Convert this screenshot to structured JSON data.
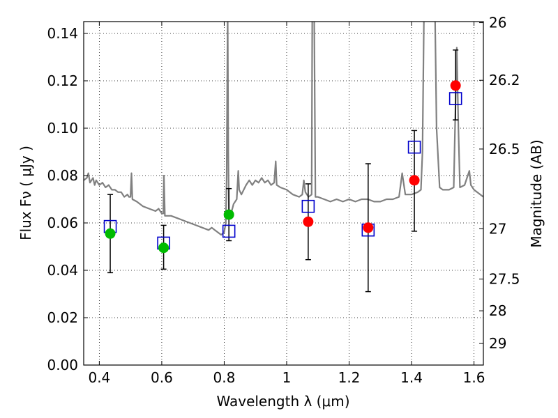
{
  "chart_data": {
    "type": "scatter",
    "xlabel": "Wavelength  λ (μm)",
    "ylabel": "Flux  Fν  ( μJy )",
    "ylabel_right": "Magnitude (AB)",
    "xlim": [
      0.35,
      1.63
    ],
    "ylim": [
      0.0,
      0.145
    ],
    "x_ticks": [
      0.4,
      0.6,
      0.8,
      1.0,
      1.2,
      1.4,
      1.6
    ],
    "x_tick_labels": [
      "0.4",
      "0.6",
      "0.8",
      "1",
      "1.2",
      "1.4",
      "1.6"
    ],
    "y_ticks": [
      0.0,
      0.02,
      0.04,
      0.06,
      0.08,
      0.1,
      0.12,
      0.14
    ],
    "y_tick_labels": [
      "0.00",
      "0.02",
      "0.04",
      "0.06",
      "0.08",
      "0.10",
      "0.12",
      "0.14"
    ],
    "right_ticks": [
      {
        "mag": 26,
        "label": "26"
      },
      {
        "mag": 26.2,
        "label": "26.2"
      },
      {
        "mag": 26.5,
        "label": "26.5"
      },
      {
        "mag": 27,
        "label": "27"
      },
      {
        "mag": 27.5,
        "label": "27.5"
      },
      {
        "mag": 28,
        "label": "28"
      },
      {
        "mag": 29,
        "label": "29"
      }
    ],
    "grid": "dotted",
    "model_spectrum": {
      "color": "#808080",
      "points": [
        [
          0.35,
          0.078
        ],
        [
          0.36,
          0.079
        ],
        [
          0.365,
          0.081
        ],
        [
          0.37,
          0.077
        ],
        [
          0.38,
          0.079
        ],
        [
          0.385,
          0.076
        ],
        [
          0.39,
          0.078
        ],
        [
          0.4,
          0.076
        ],
        [
          0.41,
          0.077
        ],
        [
          0.42,
          0.075
        ],
        [
          0.43,
          0.076
        ],
        [
          0.44,
          0.074
        ],
        [
          0.45,
          0.074
        ],
        [
          0.46,
          0.073
        ],
        [
          0.47,
          0.073
        ],
        [
          0.48,
          0.071
        ],
        [
          0.49,
          0.072
        ],
        [
          0.495,
          0.071
        ],
        [
          0.5,
          0.071
        ],
        [
          0.503,
          0.081
        ],
        [
          0.506,
          0.07
        ],
        [
          0.52,
          0.069
        ],
        [
          0.54,
          0.067
        ],
        [
          0.56,
          0.066
        ],
        [
          0.58,
          0.065
        ],
        [
          0.59,
          0.066
        ],
        [
          0.6,
          0.064
        ],
        [
          0.605,
          0.064
        ],
        [
          0.607,
          0.08
        ],
        [
          0.61,
          0.063
        ],
        [
          0.63,
          0.063
        ],
        [
          0.65,
          0.062
        ],
        [
          0.67,
          0.061
        ],
        [
          0.69,
          0.06
        ],
        [
          0.71,
          0.059
        ],
        [
          0.73,
          0.058
        ],
        [
          0.75,
          0.057
        ],
        [
          0.76,
          0.058
        ],
        [
          0.77,
          0.057
        ],
        [
          0.78,
          0.056
        ],
        [
          0.79,
          0.055
        ],
        [
          0.8,
          0.056
        ],
        [
          0.805,
          0.06
        ],
        [
          0.808,
          0.08
        ],
        [
          0.811,
          0.15
        ],
        [
          0.813,
          0.09
        ],
        [
          0.815,
          0.065
        ],
        [
          0.82,
          0.063
        ],
        [
          0.83,
          0.068
        ],
        [
          0.84,
          0.07
        ],
        [
          0.845,
          0.082
        ],
        [
          0.848,
          0.074
        ],
        [
          0.855,
          0.072
        ],
        [
          0.87,
          0.076
        ],
        [
          0.88,
          0.078
        ],
        [
          0.89,
          0.076
        ],
        [
          0.9,
          0.078
        ],
        [
          0.91,
          0.077
        ],
        [
          0.92,
          0.079
        ],
        [
          0.93,
          0.077
        ],
        [
          0.94,
          0.078
        ],
        [
          0.95,
          0.076
        ],
        [
          0.96,
          0.077
        ],
        [
          0.965,
          0.086
        ],
        [
          0.968,
          0.076
        ],
        [
          0.98,
          0.075
        ],
        [
          1.0,
          0.074
        ],
        [
          1.02,
          0.072
        ],
        [
          1.04,
          0.071
        ],
        [
          1.05,
          0.072
        ],
        [
          1.055,
          0.078
        ],
        [
          1.06,
          0.073
        ],
        [
          1.07,
          0.071
        ],
        [
          1.08,
          0.072
        ],
        [
          1.082,
          0.15
        ],
        [
          1.088,
          0.15
        ],
        [
          1.092,
          0.071
        ],
        [
          1.1,
          0.071
        ],
        [
          1.12,
          0.07
        ],
        [
          1.14,
          0.069
        ],
        [
          1.16,
          0.07
        ],
        [
          1.18,
          0.069
        ],
        [
          1.2,
          0.07
        ],
        [
          1.22,
          0.069
        ],
        [
          1.24,
          0.07
        ],
        [
          1.26,
          0.07
        ],
        [
          1.28,
          0.069
        ],
        [
          1.3,
          0.069
        ],
        [
          1.32,
          0.07
        ],
        [
          1.34,
          0.07
        ],
        [
          1.36,
          0.071
        ],
        [
          1.37,
          0.081
        ],
        [
          1.38,
          0.072
        ],
        [
          1.4,
          0.072
        ],
        [
          1.42,
          0.073
        ],
        [
          1.43,
          0.074
        ],
        [
          1.435,
          0.09
        ],
        [
          1.44,
          0.15
        ],
        [
          1.455,
          0.15
        ],
        [
          1.46,
          0.15
        ],
        [
          1.475,
          0.15
        ],
        [
          1.48,
          0.1
        ],
        [
          1.49,
          0.075
        ],
        [
          1.5,
          0.074
        ],
        [
          1.52,
          0.074
        ],
        [
          1.535,
          0.075
        ],
        [
          1.545,
          0.134
        ],
        [
          1.55,
          0.1
        ],
        [
          1.555,
          0.075
        ],
        [
          1.57,
          0.076
        ],
        [
          1.585,
          0.082
        ],
        [
          1.59,
          0.076
        ],
        [
          1.6,
          0.074
        ],
        [
          1.61,
          0.073
        ],
        [
          1.63,
          0.071
        ]
      ]
    },
    "squares": {
      "color": "#0000cc",
      "points": [
        {
          "x": 0.435,
          "y": 0.0585
        },
        {
          "x": 0.606,
          "y": 0.0515
        },
        {
          "x": 0.815,
          "y": 0.0565
        },
        {
          "x": 1.069,
          "y": 0.067
        },
        {
          "x": 1.261,
          "y": 0.057
        },
        {
          "x": 1.409,
          "y": 0.092
        },
        {
          "x": 1.541,
          "y": 0.1125
        }
      ]
    },
    "observed": [
      {
        "x": 0.435,
        "y": 0.0555,
        "err_low": 0.039,
        "err_high": 0.072,
        "color": "#00bb00"
      },
      {
        "x": 0.606,
        "y": 0.0495,
        "err_low": 0.0405,
        "err_high": 0.059,
        "color": "#00bb00"
      },
      {
        "x": 0.815,
        "y": 0.0635,
        "err_low": 0.0525,
        "err_high": 0.0745,
        "color": "#00bb00"
      },
      {
        "x": 1.069,
        "y": 0.0605,
        "err_low": 0.0445,
        "err_high": 0.0765,
        "color": "#ff0000"
      },
      {
        "x": 1.261,
        "y": 0.058,
        "err_low": 0.031,
        "err_high": 0.085,
        "color": "#ff0000"
      },
      {
        "x": 1.409,
        "y": 0.078,
        "err_low": 0.0565,
        "err_high": 0.099,
        "color": "#ff0000"
      },
      {
        "x": 1.541,
        "y": 0.118,
        "err_low": 0.1035,
        "err_high": 0.133,
        "color": "#ff0000"
      }
    ]
  }
}
